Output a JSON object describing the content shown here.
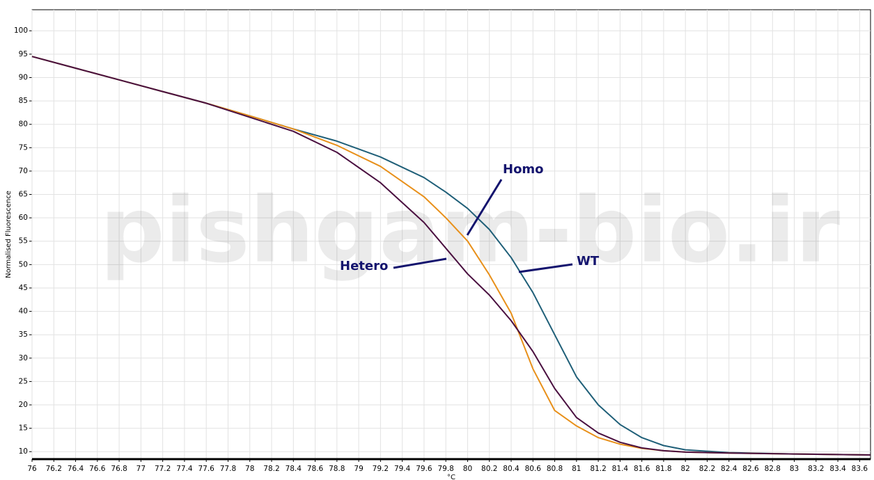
{
  "chart_data": {
    "type": "line",
    "x_label": "°C",
    "y_label": "Normalised Fluorescence",
    "watermark": "pishgam-bio.ir",
    "annotations": [
      "Homo",
      "Hetero",
      "WT"
    ],
    "x": [
      76,
      76.4,
      76.8,
      77.2,
      77.6,
      78,
      78.4,
      78.8,
      79.2,
      79.6,
      79.8,
      80,
      80.2,
      80.4,
      80.6,
      80.8,
      81,
      81.2,
      81.4,
      81.6,
      81.8,
      82,
      82.4,
      83,
      83.7
    ],
    "series": [
      {
        "name": "WT",
        "color": "#1f5f78",
        "values": [
          94.5,
          92,
          89.5,
          87,
          84.5,
          81.8,
          79,
          76.4,
          73,
          68.6,
          65.5,
          62,
          57.5,
          51.5,
          44,
          35,
          26,
          20,
          15.8,
          13,
          11.3,
          10.4,
          9.8,
          9.5,
          9.3
        ]
      },
      {
        "name": "Homo",
        "color": "#e8901a",
        "values": [
          94.5,
          92,
          89.5,
          87,
          84.5,
          81.8,
          79,
          75.5,
          71,
          64.5,
          60,
          55,
          47.8,
          39.6,
          27.7,
          18.8,
          15.5,
          13,
          11.6,
          10.7,
          10.2,
          9.9,
          9.7,
          9.5,
          9.3
        ]
      },
      {
        "name": "Hetero",
        "color": "#4a1040",
        "values": [
          94.5,
          92,
          89.5,
          87,
          84.5,
          81.5,
          78.5,
          74,
          67.5,
          59,
          53.5,
          48,
          43.5,
          38,
          31.4,
          23.5,
          17.3,
          14,
          12,
          10.8,
          10.2,
          9.9,
          9.7,
          9.5,
          9.3
        ]
      }
    ],
    "xlim": [
      76,
      83.7
    ],
    "ylim": [
      8.4,
      104.5
    ],
    "xticks": [
      76,
      76.2,
      76.4,
      76.6,
      76.8,
      77,
      77.2,
      77.4,
      77.6,
      77.8,
      78,
      78.2,
      78.4,
      78.6,
      78.8,
      79,
      79.2,
      79.4,
      79.6,
      79.8,
      80,
      80.2,
      80.4,
      80.6,
      80.8,
      81,
      81.2,
      81.4,
      81.6,
      81.8,
      82,
      82.2,
      82.4,
      82.6,
      82.8,
      83,
      83.2,
      83.4,
      83.6
    ],
    "yticks": [
      10,
      15,
      20,
      25,
      30,
      35,
      40,
      45,
      50,
      55,
      60,
      65,
      70,
      75,
      80,
      85,
      90,
      95,
      100
    ],
    "grid": true
  }
}
